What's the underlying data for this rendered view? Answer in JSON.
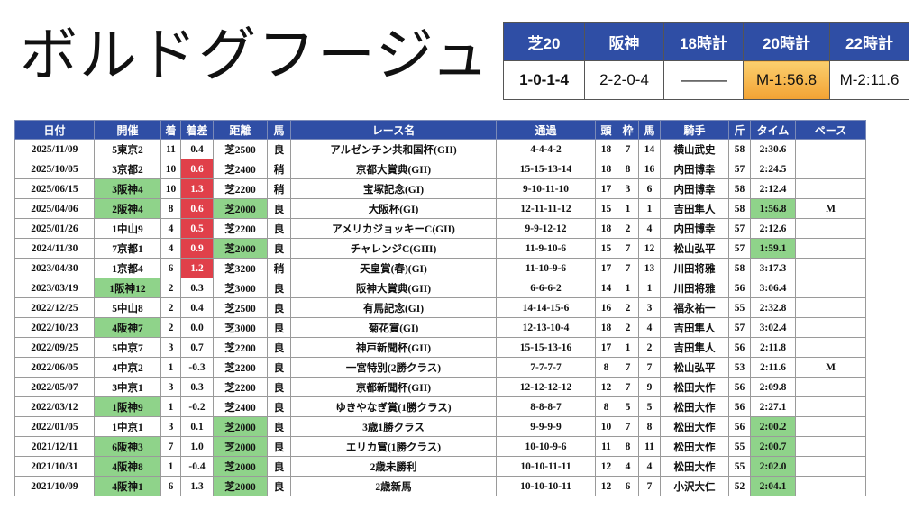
{
  "horse_name": "ボルドグフージュ",
  "summary": {
    "headers": [
      "芝20",
      "阪神",
      "18時計",
      "20時計",
      "22時計"
    ],
    "values": [
      "1-0-1-4",
      "2-2-0-4",
      "———",
      "M-1:56.8",
      "M-2:11.6"
    ]
  },
  "table": {
    "headers": [
      "日付",
      "開催",
      "着",
      "着差",
      "距離",
      "馬",
      "レース名",
      "通過",
      "頭",
      "枠",
      "馬",
      "騎手",
      "斤",
      "タイム",
      "ペース"
    ],
    "rows": [
      [
        "2025/11/09",
        "5東京2",
        "11",
        "0.4",
        "芝2500",
        "良",
        "アルゼンチン共和国杯(GII)",
        "4-4-4-2",
        "18",
        "7",
        "14",
        "横山武史",
        "58",
        "2:30.6",
        ""
      ],
      [
        "2025/10/05",
        "3京都2",
        "10",
        "0.6",
        "芝2400",
        "稍",
        "京都大賞典(GII)",
        "15-15-13-14",
        "18",
        "8",
        "16",
        "内田博幸",
        "57",
        "2:24.5",
        ""
      ],
      [
        "2025/06/15",
        "3阪神4",
        "10",
        "1.3",
        "芝2200",
        "稍",
        "宝塚記念(GI)",
        "9-10-11-10",
        "17",
        "3",
        "6",
        "内田博幸",
        "58",
        "2:12.4",
        ""
      ],
      [
        "2025/04/06",
        "2阪神4",
        "8",
        "0.6",
        "芝2000",
        "良",
        "大阪杯(GI)",
        "12-11-11-12",
        "15",
        "1",
        "1",
        "吉田隼人",
        "58",
        "1:56.8",
        "M"
      ],
      [
        "2025/01/26",
        "1中山9",
        "4",
        "0.5",
        "芝2200",
        "良",
        "アメリカジョッキーC(GII)",
        "9-9-12-12",
        "18",
        "2",
        "4",
        "内田博幸",
        "57",
        "2:12.6",
        ""
      ],
      [
        "2024/11/30",
        "7京都1",
        "4",
        "0.9",
        "芝2000",
        "良",
        "チャレンジC(GIII)",
        "11-9-10-6",
        "15",
        "7",
        "12",
        "松山弘平",
        "57",
        "1:59.1",
        ""
      ],
      [
        "2023/04/30",
        "1京都4",
        "6",
        "1.2",
        "芝3200",
        "稍",
        "天皇賞(春)(GI)",
        "11-10-9-6",
        "17",
        "7",
        "13",
        "川田将雅",
        "58",
        "3:17.3",
        ""
      ],
      [
        "2023/03/19",
        "1阪神12",
        "2",
        "0.3",
        "芝3000",
        "良",
        "阪神大賞典(GII)",
        "6-6-6-2",
        "14",
        "1",
        "1",
        "川田将雅",
        "56",
        "3:06.4",
        ""
      ],
      [
        "2022/12/25",
        "5中山8",
        "2",
        "0.4",
        "芝2500",
        "良",
        "有馬記念(GI)",
        "14-14-15-6",
        "16",
        "2",
        "3",
        "福永祐一",
        "55",
        "2:32.8",
        ""
      ],
      [
        "2022/10/23",
        "4阪神7",
        "2",
        "0.0",
        "芝3000",
        "良",
        "菊花賞(GI)",
        "12-13-10-4",
        "18",
        "2",
        "4",
        "吉田隼人",
        "57",
        "3:02.4",
        ""
      ],
      [
        "2022/09/25",
        "5中京7",
        "3",
        "0.7",
        "芝2200",
        "良",
        "神戸新聞杯(GII)",
        "15-15-13-16",
        "17",
        "1",
        "2",
        "吉田隼人",
        "56",
        "2:11.8",
        ""
      ],
      [
        "2022/06/05",
        "4中京2",
        "1",
        "-0.3",
        "芝2200",
        "良",
        "一宮特別(2勝クラス)",
        "7-7-7-7",
        "8",
        "7",
        "7",
        "松山弘平",
        "53",
        "2:11.6",
        "M"
      ],
      [
        "2022/05/07",
        "3中京1",
        "3",
        "0.3",
        "芝2200",
        "良",
        "京都新聞杯(GII)",
        "12-12-12-12",
        "12",
        "7",
        "9",
        "松田大作",
        "56",
        "2:09.8",
        ""
      ],
      [
        "2022/03/12",
        "1阪神9",
        "1",
        "-0.2",
        "芝2400",
        "良",
        "ゆきやなぎ賞(1勝クラス)",
        "8-8-8-7",
        "8",
        "5",
        "5",
        "松田大作",
        "56",
        "2:27.1",
        ""
      ],
      [
        "2022/01/05",
        "1中京1",
        "3",
        "0.1",
        "芝2000",
        "良",
        "3歳1勝クラス",
        "9-9-9-9",
        "10",
        "7",
        "8",
        "松田大作",
        "56",
        "2:00.2",
        ""
      ],
      [
        "2021/12/11",
        "6阪神3",
        "7",
        "1.0",
        "芝2000",
        "良",
        "エリカ賞(1勝クラス)",
        "10-10-9-6",
        "11",
        "8",
        "11",
        "松田大作",
        "55",
        "2:00.7",
        ""
      ],
      [
        "2021/10/31",
        "4阪神8",
        "1",
        "-0.4",
        "芝2000",
        "良",
        "2歳未勝利",
        "10-10-11-11",
        "12",
        "4",
        "4",
        "松田大作",
        "55",
        "2:02.0",
        ""
      ],
      [
        "2021/10/09",
        "4阪神1",
        "6",
        "1.3",
        "芝2000",
        "良",
        "2歳新馬",
        "10-10-10-11",
        "12",
        "6",
        "7",
        "小沢大仁",
        "52",
        "2:04.1",
        ""
      ]
    ],
    "highlight_green_color": "#8fd38a",
    "highlight_red_color": "#e0404a",
    "header_color": "#2f4ea5"
  }
}
